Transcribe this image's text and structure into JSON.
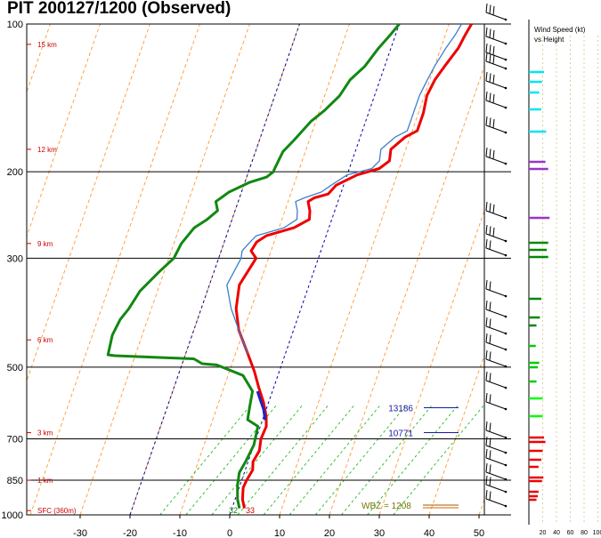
{
  "header": {
    "title": "PIT   200127/1200  (Observed)"
  },
  "panel": {
    "title_line1": "Wind Speed (kt)",
    "title_line2": "vs Height",
    "ticks": [
      "20",
      "40",
      "60",
      "80",
      "100"
    ]
  },
  "colors": {
    "temperature": "#ee0000",
    "dewpoint": "#118811",
    "virtual_temp": "#3a7fd0",
    "parcel": "#2020cc",
    "isotherm": "#ff9933",
    "mixing_ratio": "#22bb22",
    "freezing_isotherm": "#0000aa",
    "lfc_line": "#1a1aa0",
    "el_line": "#a05a00"
  },
  "chart_data": {
    "type": "line",
    "title": "PIT   200127/1200  (Observed)",
    "xlabel": "",
    "ylabel": "",
    "xlim": [
      -40,
      50
    ],
    "ylim": [
      1000,
      100
    ],
    "y_scale": "log",
    "x_ticks": [
      "-30",
      "-20",
      "-10",
      "0",
      "10",
      "20",
      "30",
      "40",
      "50"
    ],
    "x_tick_values": [
      -30,
      -20,
      -10,
      0,
      10,
      20,
      30,
      40,
      50
    ],
    "p_ticks": [
      "100",
      "200",
      "300",
      "500",
      "700",
      "850",
      "1000"
    ],
    "p_tick_values": [
      100,
      200,
      300,
      500,
      700,
      850,
      1000
    ],
    "height_labels": [
      {
        "text": "SFC (360m)",
        "p": 980
      },
      {
        "text": "1 km",
        "p": 850
      },
      {
        "text": "3 km",
        "p": 680
      },
      {
        "text": "6 km",
        "p": 440
      },
      {
        "text": "9 km",
        "p": 280
      },
      {
        "text": "12 km",
        "p": 180
      },
      {
        "text": "15 km",
        "p": 110
      }
    ],
    "sfc_temps": {
      "dewpoint": "32",
      "temperature": "33"
    },
    "levels": [
      {
        "text": "13186",
        "p": 605
      },
      {
        "text": "10771",
        "p": 680
      }
    ],
    "wbz_label": "WBZ = 1208",
    "series": [
      {
        "key": "temperature",
        "points": [
          [
            2.5,
            970
          ],
          [
            1.5,
            930
          ],
          [
            0.8,
            880
          ],
          [
            1.0,
            850
          ],
          [
            1.5,
            810
          ],
          [
            1.0,
            780
          ],
          [
            1.5,
            740
          ],
          [
            1.0,
            700
          ],
          [
            1.2,
            660
          ],
          [
            0.5,
            630
          ],
          [
            -1.0,
            590
          ],
          [
            -3.0,
            550
          ],
          [
            -5.0,
            510
          ],
          [
            -7.5,
            470
          ],
          [
            -11.0,
            420
          ],
          [
            -13.0,
            380
          ],
          [
            -14.0,
            340
          ],
          [
            -12.5,
            300
          ],
          [
            -14.0,
            290
          ],
          [
            -13.5,
            278
          ],
          [
            -12.0,
            270
          ],
          [
            -7.0,
            260
          ],
          [
            -4.5,
            250
          ],
          [
            -5.0,
            240
          ],
          [
            -6.0,
            230
          ],
          [
            -5.0,
            226
          ],
          [
            -2.5,
            222
          ],
          [
            -1.5,
            213
          ],
          [
            2.0,
            203
          ],
          [
            6.0,
            197
          ],
          [
            7.5,
            190
          ],
          [
            7.0,
            180
          ],
          [
            9.0,
            170
          ],
          [
            11.0,
            165
          ],
          [
            11.0,
            152
          ],
          [
            10.5,
            140
          ],
          [
            11.0,
            130
          ],
          [
            12.0,
            122
          ],
          [
            13.5,
            112
          ],
          [
            14.0,
            105
          ],
          [
            14.5,
            100
          ]
        ]
      },
      {
        "key": "virtual_temp",
        "points": [
          [
            -7.5,
            470
          ],
          [
            -11.0,
            420
          ],
          [
            -14.0,
            380
          ],
          [
            -16.5,
            340
          ],
          [
            -15.5,
            300
          ],
          [
            -15.8,
            290
          ],
          [
            -15.0,
            280
          ],
          [
            -14.0,
            270
          ],
          [
            -9.0,
            260
          ],
          [
            -7.0,
            250
          ],
          [
            -7.5,
            240
          ],
          [
            -8.5,
            230
          ],
          [
            -7.0,
            226
          ],
          [
            -4.0,
            220
          ],
          [
            -2.5,
            213
          ],
          [
            0.0,
            203
          ],
          [
            4.5,
            197
          ],
          [
            5.5,
            190
          ],
          [
            5.0,
            180
          ],
          [
            7.0,
            170
          ],
          [
            9.0,
            165
          ],
          [
            9.0,
            152
          ],
          [
            9.0,
            140
          ],
          [
            9.5,
            130
          ],
          [
            10.0,
            122
          ],
          [
            11.0,
            112
          ],
          [
            12.0,
            105
          ],
          [
            12.5,
            100
          ]
        ]
      },
      {
        "key": "parcel",
        "points": [
          [
            0.5,
            640
          ],
          [
            -0.5,
            610
          ],
          [
            -2.0,
            580
          ],
          [
            -3.0,
            560
          ]
        ]
      },
      {
        "key": "dewpoint",
        "points": [
          [
            1.5,
            970
          ],
          [
            0.5,
            930
          ],
          [
            -0.5,
            870
          ],
          [
            -1.0,
            820
          ],
          [
            -0.5,
            780
          ],
          [
            0.0,
            720
          ],
          [
            -0.5,
            660
          ],
          [
            -3.0,
            640
          ],
          [
            -3.5,
            600
          ],
          [
            -4.0,
            560
          ],
          [
            -7.0,
            520
          ],
          [
            -13.0,
            495
          ],
          [
            -16.0,
            492
          ],
          [
            -18.0,
            481
          ],
          [
            -25.0,
            478
          ],
          [
            -34.0,
            474
          ],
          [
            -35.5,
            472
          ],
          [
            -36.0,
            430
          ],
          [
            -35.5,
            400
          ],
          [
            -34.5,
            380
          ],
          [
            -33.5,
            350
          ],
          [
            -31.0,
            320
          ],
          [
            -29.0,
            300
          ],
          [
            -28.5,
            280
          ],
          [
            -27.0,
            260
          ],
          [
            -25.0,
            250
          ],
          [
            -23.5,
            240
          ],
          [
            -24.5,
            230
          ],
          [
            -22.5,
            220
          ],
          [
            -19.0,
            210
          ],
          [
            -16.0,
            205
          ],
          [
            -15.0,
            200
          ],
          [
            -15.0,
            198
          ],
          [
            -14.5,
            182
          ],
          [
            -13.0,
            172
          ],
          [
            -11.0,
            158
          ],
          [
            -9.0,
            150
          ],
          [
            -7.0,
            140
          ],
          [
            -6.0,
            130
          ],
          [
            -4.0,
            122
          ],
          [
            -2.5,
            112
          ],
          [
            -1.0,
            105
          ],
          [
            0.0,
            100
          ]
        ]
      }
    ],
    "wind_speed_profile": [
      {
        "y": 81,
        "kt": 22,
        "color": "#00e5ee"
      },
      {
        "y": 92,
        "kt": 19,
        "color": "#00e5ee"
      },
      {
        "y": 104,
        "kt": 15,
        "color": "#00e5ee"
      },
      {
        "y": 123,
        "kt": 18,
        "color": "#00e5ee"
      },
      {
        "y": 148,
        "kt": 25,
        "color": "#00e5ee"
      },
      {
        "y": 182,
        "kt": 24,
        "color": "#9933cc"
      },
      {
        "y": 190,
        "kt": 28,
        "color": "#9933cc"
      },
      {
        "y": 245,
        "kt": 30,
        "color": "#9933cc"
      },
      {
        "y": 273,
        "kt": 28,
        "color": "#008800"
      },
      {
        "y": 281,
        "kt": 26,
        "color": "#008800"
      },
      {
        "y": 289,
        "kt": 28,
        "color": "#008800"
      },
      {
        "y": 336,
        "kt": 18,
        "color": "#008800"
      },
      {
        "y": 357,
        "kt": 16,
        "color": "#008800"
      },
      {
        "y": 366,
        "kt": 11,
        "color": "#008800"
      },
      {
        "y": 389,
        "kt": 10,
        "color": "#00cc00"
      },
      {
        "y": 408,
        "kt": 15,
        "color": "#00cc00"
      },
      {
        "y": 413,
        "kt": 13,
        "color": "#00cc00"
      },
      {
        "y": 429,
        "kt": 11,
        "color": "#00cc00"
      },
      {
        "y": 448,
        "kt": 20,
        "color": "#00ff00"
      },
      {
        "y": 468,
        "kt": 20,
        "color": "#00ff00"
      },
      {
        "y": 492,
        "kt": 22,
        "color": "#ee0000"
      },
      {
        "y": 497,
        "kt": 24,
        "color": "#ee0000"
      },
      {
        "y": 507,
        "kt": 20,
        "color": "#ee0000"
      },
      {
        "y": 517,
        "kt": 18,
        "color": "#ee0000"
      },
      {
        "y": 525,
        "kt": 14,
        "color": "#ee0000"
      },
      {
        "y": 537,
        "kt": 21,
        "color": "#ee0000"
      },
      {
        "y": 541,
        "kt": 19,
        "color": "#ee0000"
      },
      {
        "y": 553,
        "kt": 14,
        "color": "#ee0000"
      },
      {
        "y": 558,
        "kt": 13,
        "color": "#ee0000"
      },
      {
        "y": 562,
        "kt": 11,
        "color": "#ee0000"
      }
    ]
  }
}
